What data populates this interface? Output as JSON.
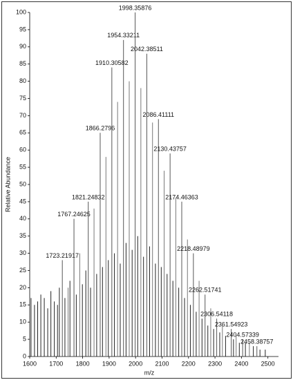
{
  "chart_data": {
    "type": "spectrum",
    "xlabel": "m/z",
    "ylabel": "Relative Abundance",
    "xlim": [
      1600,
      2540
    ],
    "ylim": [
      0,
      100
    ],
    "xticks": [
      1600,
      1700,
      1800,
      1900,
      2000,
      2100,
      2200,
      2300,
      2400,
      2500
    ],
    "yticks": [
      0,
      5,
      10,
      15,
      20,
      25,
      30,
      35,
      40,
      45,
      50,
      55,
      60,
      65,
      70,
      75,
      80,
      85,
      90,
      95,
      100
    ],
    "series": [
      {
        "color": "#555555",
        "show_labels": true,
        "x": [
          1723.21917,
          1767.24625,
          1821.24832,
          1866.2796,
          1910.30582,
          1954.33211,
          1998.35876,
          2042.38511,
          2086.41111,
          2130.43757,
          2174.46363,
          2218.48979,
          2262.51741,
          2306.54118,
          2361.54923,
          2404.57339,
          2458.38757
        ],
        "values": [
          28,
          40,
          45,
          65,
          84,
          92,
          100,
          88,
          69,
          59,
          45,
          30,
          18,
          11,
          8,
          5,
          3
        ]
      },
      {
        "color": "#777777",
        "show_labels": false,
        "x": [
          1745,
          1789,
          1843,
          1888,
          1932,
          1976,
          2020,
          2064,
          2108,
          2152,
          2196,
          2240,
          2284,
          2328,
          2380,
          2430
        ],
        "values": [
          20,
          30,
          43,
          58,
          74,
          80,
          78,
          68,
          54,
          46,
          34,
          22,
          14,
          9,
          6,
          4
        ]
      },
      {
        "color": "#222222",
        "show_labels": false,
        "x": [
          1605,
          1618,
          1630,
          1642,
          1655,
          1668,
          1680,
          1693,
          1705,
          1712,
          1733,
          1752,
          1776,
          1799,
          1812,
          1830,
          1853,
          1875,
          1897,
          1920,
          1942,
          1964,
          1987,
          2008,
          2030,
          2053,
          2075,
          2097,
          2119,
          2141,
          2163,
          2185,
          2207,
          2229,
          2251,
          2273,
          2295,
          2318,
          2340,
          2370,
          2392,
          2415,
          2445,
          2470,
          2490
        ],
        "values": [
          17,
          15,
          16,
          18,
          17,
          14,
          19,
          16,
          15,
          20,
          17,
          22,
          18,
          21,
          25,
          20,
          24,
          26,
          28,
          30,
          27,
          33,
          31,
          35,
          29,
          32,
          27,
          26,
          24,
          22,
          20,
          17,
          15,
          13,
          11,
          9,
          8,
          7,
          6,
          5,
          4,
          4,
          3,
          2,
          2
        ]
      }
    ]
  }
}
